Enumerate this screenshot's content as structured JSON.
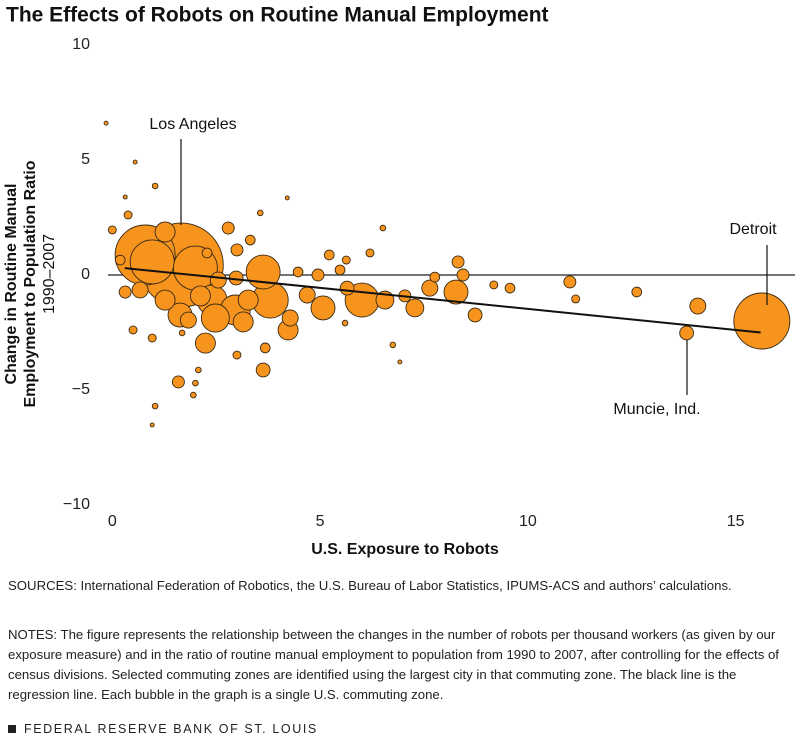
{
  "chart_data": {
    "type": "bubble",
    "title": "The Effects of Robots on Routine Manual Employment",
    "x_label": "U.S. Exposure to Robots",
    "y_label_lines": [
      "Change in Routine Manual",
      "Employment to Population Ratio"
    ],
    "y_label_sub": "1990–2007",
    "xlim": [
      -0.2,
      16.5
    ],
    "ylim": [
      -10,
      10
    ],
    "xticks": [
      0,
      5,
      10,
      15
    ],
    "yticks": [
      10,
      5,
      0,
      {
        "value": -5,
        "label": "−5"
      },
      {
        "value": -10,
        "label": "−10"
      }
    ],
    "zero_line": true,
    "color": "#f7941d",
    "x": [
      1.66,
      0.79,
      0.96,
      2.0,
      3.63,
      1.27,
      2.4,
      2.96,
      3.8,
      2.48,
      1.63,
      6.01,
      5.07,
      15.63,
      13.82,
      14.09,
      8.27,
      7.64,
      7.28,
      6.56,
      8.73,
      8.32,
      8.44,
      7.76,
      11.01,
      11.15,
      12.62,
      9.18,
      9.57,
      7.04,
      5.65,
      5.48,
      4.95,
      4.47,
      4.69,
      4.23,
      4.28,
      2.24,
      1.83,
      1.27,
      0.67,
      1.59,
      3.63,
      3.68,
      2.79,
      0.31,
      0.19,
      0.5,
      0.96,
      1.68,
      2.07,
      2.0,
      1.95,
      1.03,
      0.96,
      -0.15,
      0.55,
      1.03,
      0.31,
      4.21,
      6.51,
      6.75,
      6.92,
      5.6,
      3.56,
      3.32,
      3.0,
      5.22,
      6.2,
      5.63,
      0.38,
      0.0,
      3.0,
      3.27,
      3.15,
      2.12,
      2.55,
      2.28,
      2.98
    ],
    "y": [
      0.43,
      0.87,
      0.57,
      0.3,
      0.13,
      1.87,
      -1.09,
      -1.52,
      -1.09,
      -1.87,
      -1.74,
      -1.09,
      -1.43,
      -2.0,
      -2.52,
      -1.35,
      -0.74,
      -0.57,
      -1.43,
      -1.09,
      -1.74,
      0.57,
      0.0,
      -0.09,
      -0.3,
      -1.04,
      -0.74,
      -0.43,
      -0.57,
      -0.91,
      -0.57,
      0.22,
      0.0,
      0.13,
      -0.87,
      -2.39,
      -1.87,
      -2.96,
      -1.96,
      -1.09,
      -0.65,
      -4.65,
      -4.13,
      -3.17,
      2.04,
      -0.74,
      0.65,
      -2.39,
      -2.74,
      -2.52,
      -4.13,
      -4.7,
      -5.22,
      -5.7,
      -6.52,
      6.6,
      4.91,
      3.87,
      3.39,
      3.35,
      2.04,
      -3.04,
      -3.78,
      -2.09,
      2.7,
      1.52,
      1.09,
      0.87,
      0.96,
      0.65,
      2.61,
      1.96,
      -3.48,
      -1.09,
      -2.04,
      -0.91,
      -0.22,
      0.96,
      -0.13
    ],
    "sizes": [
      441,
      225,
      121,
      121,
      72,
      25,
      56,
      56,
      81,
      49,
      36,
      72,
      36,
      196,
      12,
      16,
      36,
      16,
      20,
      20,
      12,
      9,
      9,
      6,
      9,
      4,
      6,
      4,
      6,
      9,
      12,
      6,
      9,
      6,
      16,
      25,
      16,
      25,
      16,
      25,
      16,
      9,
      12,
      6,
      9,
      9,
      6,
      4,
      4,
      2,
      2,
      2,
      2,
      2,
      1,
      1,
      1,
      2,
      1,
      1,
      2,
      2,
      1,
      2,
      2,
      6,
      9,
      6,
      4,
      4,
      4,
      4,
      4,
      25,
      25,
      25,
      16,
      6,
      12
    ],
    "regression": {
      "x": [
        0.3,
        15.6
      ],
      "y": [
        0.3,
        -2.5
      ]
    },
    "annotations": [
      "Los Angeles",
      "Detroit",
      "Muncie, Ind."
    ],
    "sources": "SOURCES: International Federation of Robotics, the U.S. Bureau of Labor Statistics, IPUMS-ACS and authors’ calculations.",
    "notes": "NOTES: The figure represents the relationship between the changes in the number of robots per thousand workers (as given by our exposure measure) and in the ratio of routine manual employment to population from 1990 to 2007, after controlling for the effects of census divisions. Selected commuting zones are identified using the largest city in that commuting zone. The black line is the regression line. Each bubble in the graph is a single U.S. commuting zone.",
    "footer": "FEDERAL RESERVE BANK OF ST. LOUIS"
  }
}
